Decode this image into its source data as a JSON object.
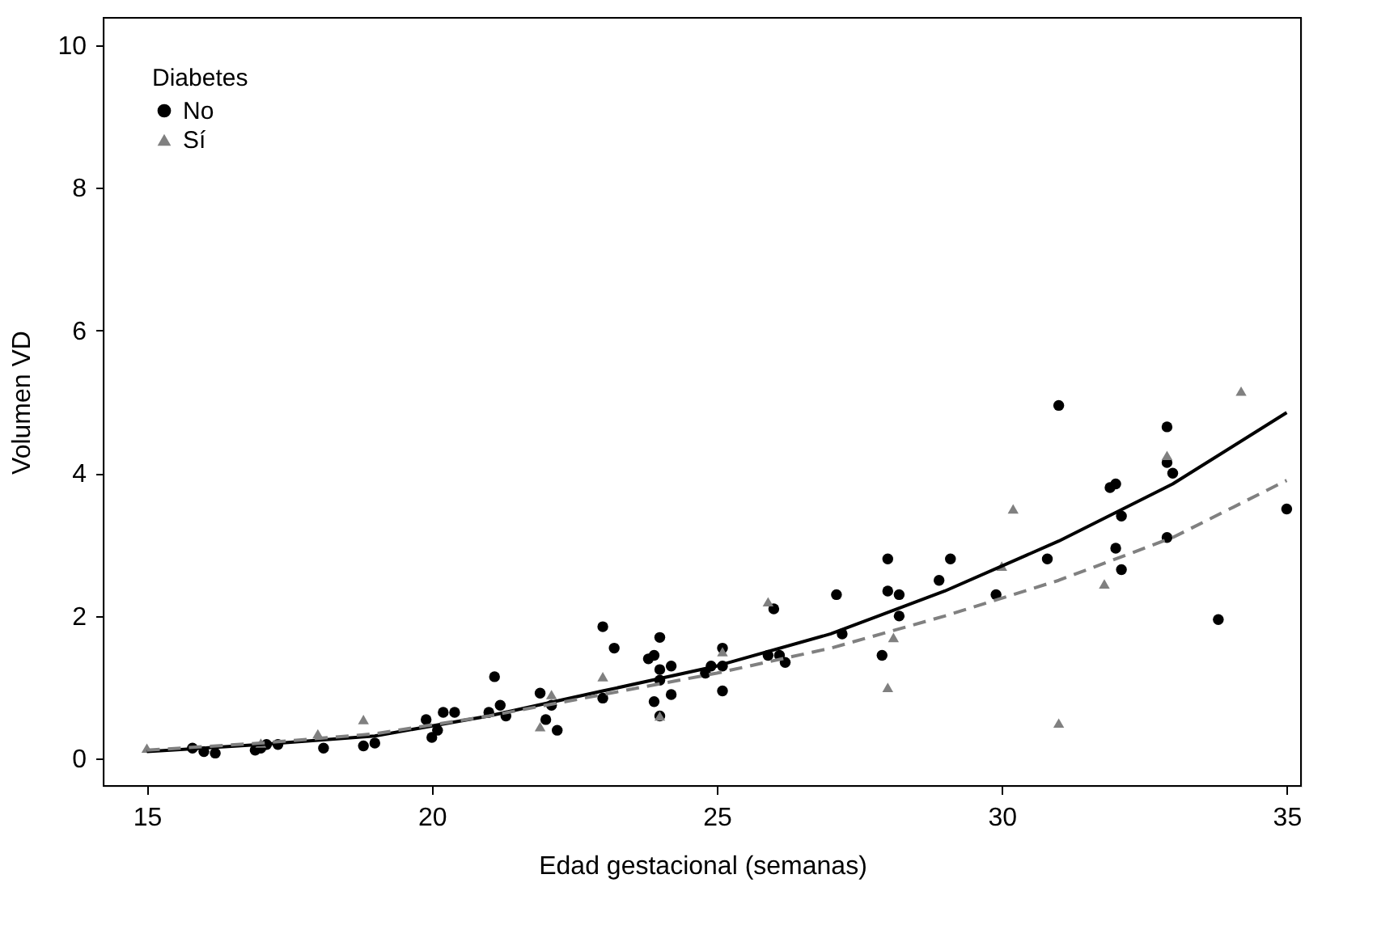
{
  "chart_data": {
    "type": "scatter",
    "xlabel": "Edad gestacional (semanas)",
    "ylabel": "Volumen VD",
    "legend_title": "Diabetes",
    "legend": "top left",
    "grid": false,
    "xlim": [
      14.24,
      35.25
    ],
    "ylim": [
      -0.38,
      10.38
    ],
    "xticks": [
      15,
      20,
      25,
      30,
      35
    ],
    "yticks": [
      0,
      2,
      4,
      6,
      8,
      10
    ],
    "series": [
      {
        "name": "No",
        "marker": "circle",
        "color": "#000000",
        "x": [
          15.8,
          16.0,
          16.2,
          16.9,
          17.0,
          17.1,
          17.3,
          18.1,
          18.8,
          19.0,
          19.9,
          20.0,
          20.1,
          20.2,
          20.4,
          21.0,
          21.1,
          21.2,
          21.3,
          21.9,
          22.0,
          22.2,
          22.1,
          23.0,
          23.2,
          23.0,
          23.8,
          23.9,
          24.0,
          24.0,
          24.0,
          23.9,
          24.0,
          24.2,
          24.2,
          24.8,
          24.9,
          25.1,
          25.1,
          25.1,
          25.9,
          26.0,
          26.1,
          26.2,
          27.1,
          27.2,
          27.9,
          28.0,
          28.0,
          28.2,
          28.2,
          28.9,
          29.1,
          29.9,
          30.8,
          31.0,
          31.9,
          32.0,
          32.0,
          32.1,
          32.1,
          32.9,
          32.9,
          33.0,
          32.9,
          33.8,
          35.0
        ],
        "values": [
          0.15,
          0.1,
          0.08,
          0.12,
          0.15,
          0.2,
          0.2,
          0.15,
          0.18,
          0.22,
          0.55,
          0.3,
          0.4,
          0.65,
          0.65,
          0.65,
          1.15,
          0.75,
          0.6,
          0.92,
          0.55,
          0.4,
          0.75,
          1.85,
          1.55,
          0.85,
          1.4,
          1.45,
          1.7,
          1.25,
          1.1,
          0.8,
          0.6,
          0.9,
          1.3,
          1.2,
          1.3,
          1.3,
          1.55,
          0.95,
          1.45,
          2.1,
          1.45,
          1.35,
          2.3,
          1.75,
          1.45,
          2.8,
          2.35,
          2.3,
          2.0,
          2.5,
          2.8,
          2.3,
          2.8,
          4.95,
          3.8,
          3.85,
          2.95,
          3.4,
          2.65,
          4.65,
          4.15,
          4.0,
          3.1,
          1.95,
          3.5
        ]
      },
      {
        "name": "Sí",
        "marker": "triangle",
        "color": "#808080",
        "x": [
          15.0,
          17.0,
          18.0,
          18.8,
          22.1,
          21.9,
          23.0,
          24.0,
          25.1,
          25.9,
          28.0,
          28.1,
          30.0,
          30.2,
          31.0,
          31.8,
          32.9,
          34.2
        ],
        "values": [
          0.15,
          0.22,
          0.35,
          0.55,
          0.9,
          0.45,
          1.15,
          0.6,
          1.5,
          2.2,
          1.0,
          1.7,
          2.7,
          3.5,
          0.5,
          2.45,
          4.25,
          5.15
        ]
      },
      {
        "type": "line",
        "line_style": "solid",
        "color": "#000000",
        "x": [
          15,
          17,
          19,
          21,
          23,
          25,
          27,
          29,
          31,
          33,
          35
        ],
        "values": [
          0.1,
          0.2,
          0.32,
          0.6,
          0.95,
          1.3,
          1.75,
          2.35,
          3.05,
          3.85,
          4.85
        ]
      },
      {
        "type": "line",
        "line_style": "dashed",
        "color": "#808080",
        "x": [
          15,
          17,
          19,
          21,
          23,
          25,
          27,
          29,
          31,
          33,
          35
        ],
        "values": [
          0.12,
          0.22,
          0.35,
          0.6,
          0.9,
          1.2,
          1.55,
          2.0,
          2.5,
          3.1,
          3.9
        ]
      }
    ]
  }
}
